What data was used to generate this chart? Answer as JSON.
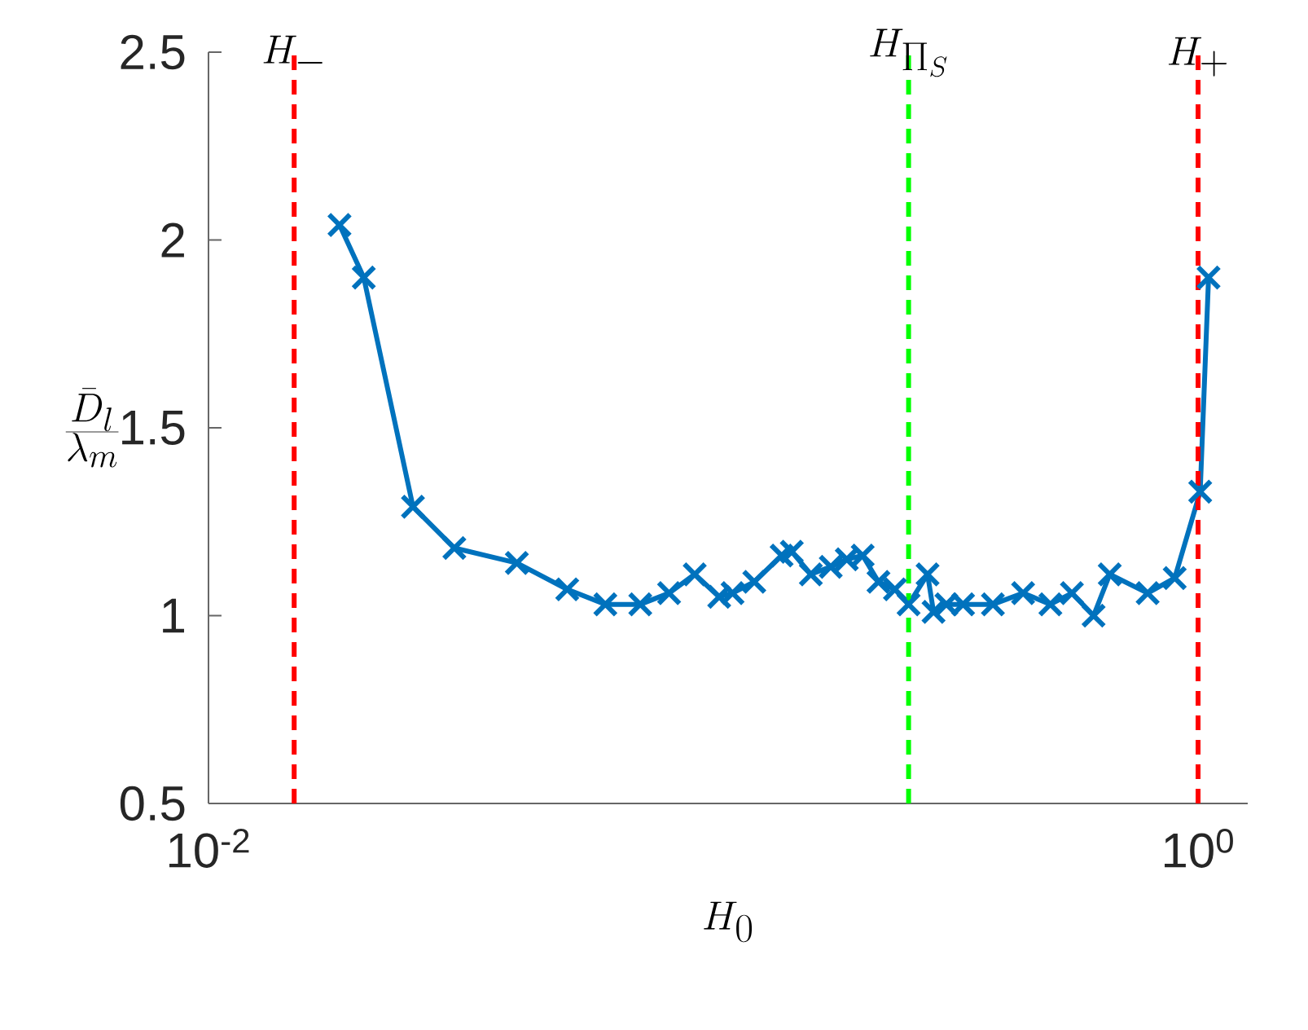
{
  "chart_data": {
    "type": "line",
    "xlabel": "H_0",
    "ylabel": "\\frac{\\bar{D}_l}{\\lambda_m}",
    "log": "x",
    "xlim": [
      0.01,
      1.26
    ],
    "ylim": [
      0.5,
      2.5
    ],
    "xticks": [
      {
        "value": 0.01,
        "label": "10$^{-2}$"
      },
      {
        "value": 1,
        "label": "10$^{0}$"
      }
    ],
    "yticks": [
      0.5,
      1,
      1.5,
      2,
      2.5
    ],
    "grid": false,
    "marker": "cross",
    "line_style": "solid",
    "series": [
      {
        "color": "#0072bd",
        "x": [
          0.0184,
          0.0206,
          0.0259,
          0.0314,
          0.042,
          0.0531,
          0.0634,
          0.0746,
          0.0853,
          0.0961,
          0.1077,
          0.1146,
          0.1268,
          0.144,
          0.151,
          0.165,
          0.181,
          0.195,
          0.21,
          0.226,
          0.244,
          0.26,
          0.284,
          0.292,
          0.31,
          0.335,
          0.385,
          0.443,
          0.503,
          0.556,
          0.615,
          0.663,
          0.791,
          0.897,
          1.01,
          1.05
        ],
        "values": [
          2.04,
          1.9,
          1.29,
          1.18,
          1.14,
          1.07,
          1.03,
          1.03,
          1.06,
          1.11,
          1.05,
          1.06,
          1.09,
          1.16,
          1.17,
          1.11,
          1.13,
          1.15,
          1.16,
          1.09,
          1.07,
          1.03,
          1.11,
          1.01,
          1.03,
          1.03,
          1.03,
          1.06,
          1.03,
          1.06,
          1.0,
          1.11,
          1.06,
          1.1,
          1.33,
          1.9
        ]
      }
    ],
    "ref_lines": [
      {
        "axis": "x",
        "value": 0.0149,
        "label": "H_-",
        "color": "#ff0000",
        "line_style": "dashed"
      },
      {
        "axis": "x",
        "value": 0.26,
        "label": "H_{\\Pi_S}",
        "color": "#00ff00",
        "line_style": "dashed"
      },
      {
        "axis": "x",
        "value": 1.0,
        "label": "H_+",
        "color": "#ff0000",
        "line_style": "dashed"
      }
    ]
  }
}
